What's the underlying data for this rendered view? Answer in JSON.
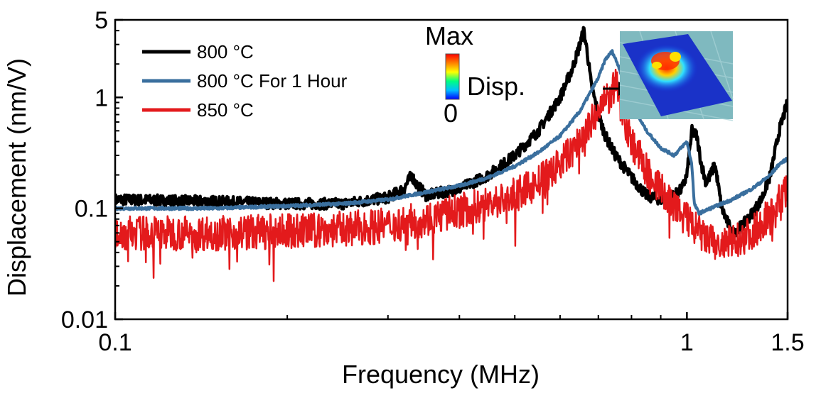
{
  "chart_data": {
    "type": "line",
    "title": "",
    "xlabel": "Frequency (MHz)",
    "ylabel": "Displacement (nm/V)",
    "x_scale": "log",
    "y_scale": "log",
    "xlim": [
      0.1,
      1.5
    ],
    "ylim": [
      0.01,
      5
    ],
    "x_ticks": [
      {
        "value": 0.1,
        "label": "0.1"
      },
      {
        "value": 1,
        "label": "1"
      },
      {
        "value": 1.5,
        "label": "1.5"
      }
    ],
    "y_ticks": [
      {
        "value": 0.01,
        "label": "0.01"
      },
      {
        "value": 0.1,
        "label": "0.1"
      },
      {
        "value": 1,
        "label": "1"
      },
      {
        "value": 5,
        "label": "5"
      }
    ],
    "grid": false,
    "legend_position": "top-left",
    "series": [
      {
        "name": "800 °C",
        "color": "#000000",
        "x": [
          0.1,
          0.15,
          0.2,
          0.25,
          0.3,
          0.32,
          0.33,
          0.335,
          0.35,
          0.4,
          0.45,
          0.5,
          0.55,
          0.6,
          0.63,
          0.65,
          0.66,
          0.67,
          0.68,
          0.7,
          0.72,
          0.75,
          0.8,
          0.85,
          0.9,
          0.95,
          0.98,
          1.0,
          1.02,
          1.04,
          1.06,
          1.08,
          1.1,
          1.12,
          1.15,
          1.2,
          1.25,
          1.3,
          1.35,
          1.4,
          1.45,
          1.5
        ],
        "y": [
          0.12,
          0.115,
          0.11,
          0.11,
          0.125,
          0.15,
          0.2,
          0.17,
          0.13,
          0.15,
          0.2,
          0.3,
          0.5,
          1.0,
          1.8,
          3.0,
          4.0,
          2.5,
          1.3,
          0.7,
          0.45,
          0.3,
          0.19,
          0.13,
          0.12,
          0.13,
          0.15,
          0.2,
          0.5,
          0.45,
          0.25,
          0.17,
          0.2,
          0.25,
          0.1,
          0.06,
          0.07,
          0.09,
          0.12,
          0.2,
          0.5,
          0.9
        ]
      },
      {
        "name": "800 °C For 1 Hour",
        "color": "#3a6f9e",
        "x": [
          0.1,
          0.15,
          0.2,
          0.25,
          0.3,
          0.35,
          0.4,
          0.45,
          0.5,
          0.55,
          0.6,
          0.65,
          0.7,
          0.72,
          0.74,
          0.76,
          0.78,
          0.8,
          0.85,
          0.9,
          0.95,
          1.0,
          1.02,
          1.03,
          1.05,
          1.1,
          1.15,
          1.2,
          1.3,
          1.4,
          1.45,
          1.5
        ],
        "y": [
          0.1,
          0.1,
          0.105,
          0.11,
          0.12,
          0.14,
          0.16,
          0.19,
          0.24,
          0.32,
          0.45,
          0.75,
          1.5,
          2.2,
          2.6,
          1.9,
          1.2,
          0.85,
          0.5,
          0.35,
          0.3,
          0.4,
          0.25,
          0.11,
          0.09,
          0.1,
          0.11,
          0.12,
          0.15,
          0.2,
          0.25,
          0.28
        ]
      },
      {
        "name": "850 °C",
        "color": "#e31a1c",
        "x": [
          0.1,
          0.15,
          0.2,
          0.25,
          0.3,
          0.35,
          0.4,
          0.45,
          0.5,
          0.55,
          0.6,
          0.65,
          0.7,
          0.73,
          0.75,
          0.76,
          0.77,
          0.78,
          0.8,
          0.85,
          0.9,
          0.95,
          1.0,
          1.05,
          1.1,
          1.15,
          1.2,
          1.3,
          1.4,
          1.5
        ],
        "y": [
          0.06,
          0.06,
          0.062,
          0.065,
          0.07,
          0.08,
          0.095,
          0.11,
          0.13,
          0.17,
          0.25,
          0.4,
          0.75,
          1.0,
          1.25,
          1.1,
          0.85,
          0.6,
          0.4,
          0.22,
          0.15,
          0.1,
          0.08,
          0.06,
          0.05,
          0.045,
          0.05,
          0.06,
          0.09,
          0.15
        ]
      }
    ],
    "colorbar": {
      "max_label": "Max",
      "min_label": "0",
      "label": "Disp.",
      "colors": [
        "#0000ff",
        "#00c0ff",
        "#00ff80",
        "#ffff00",
        "#ff8000",
        "#ff0000"
      ]
    }
  }
}
